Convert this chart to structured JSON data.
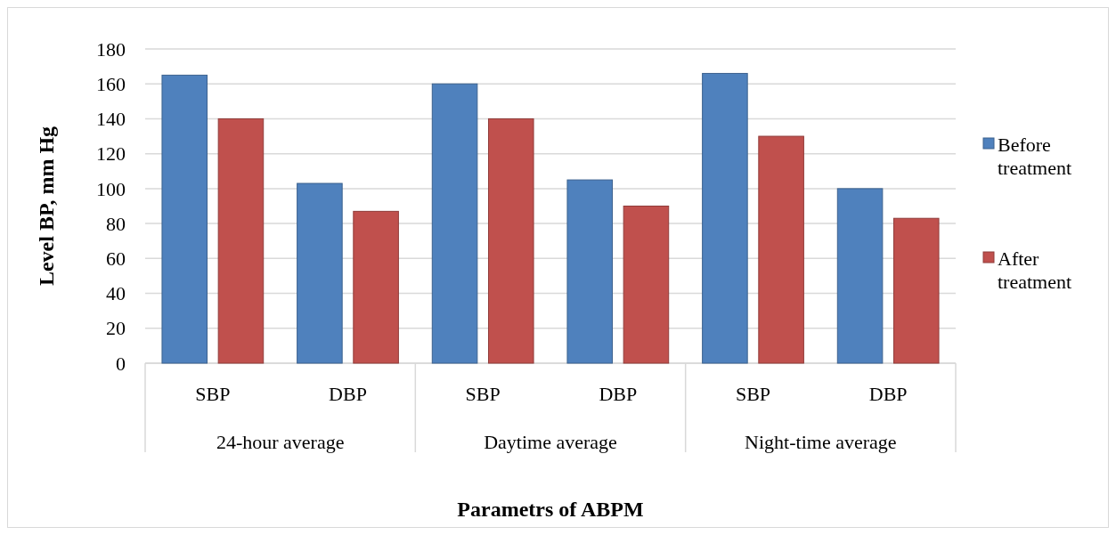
{
  "chart_data": {
    "type": "bar",
    "xlabel": "Parametrs of ABPM",
    "ylabel": "Level BP, mm Hg",
    "categories": [
      "SBP",
      "DBP",
      "SBP",
      "DBP",
      "SBP",
      "DBP"
    ],
    "annotations": [
      "24-hour average",
      "Daytime average",
      "Night-time average"
    ],
    "series": [
      {
        "name": "Before treatment",
        "color": "#4f81bd",
        "values": [
          165,
          103,
          160,
          105,
          166,
          100
        ]
      },
      {
        "name": "After treatment",
        "color": "#c0504d",
        "values": [
          140,
          87,
          140,
          90,
          130,
          83
        ]
      }
    ],
    "ylim": [
      0,
      180
    ],
    "yticks": [
      0,
      20,
      40,
      60,
      80,
      100,
      120,
      140,
      160,
      180
    ],
    "grid": "y",
    "legend": "right"
  }
}
